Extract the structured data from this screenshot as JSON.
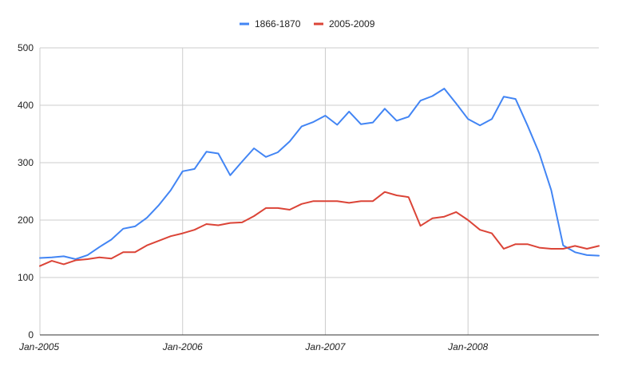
{
  "chart_data": {
    "type": "line",
    "title": "",
    "xlabel": "",
    "ylabel": "",
    "ylim": [
      0,
      500
    ],
    "y_ticks": [
      "0",
      "100",
      "200",
      "300",
      "400",
      "500"
    ],
    "x_ticks": [
      {
        "label": "Jan-2005",
        "index": 0
      },
      {
        "label": "Jan-2006",
        "index": 12
      },
      {
        "label": "Jan-2007",
        "index": 24
      },
      {
        "label": "Jan-2008",
        "index": 36
      }
    ],
    "x": [
      "2005-01",
      "2005-02",
      "2005-03",
      "2005-04",
      "2005-05",
      "2005-06",
      "2005-07",
      "2005-08",
      "2005-09",
      "2005-10",
      "2005-11",
      "2005-12",
      "2006-01",
      "2006-02",
      "2006-03",
      "2006-04",
      "2006-05",
      "2006-06",
      "2006-07",
      "2006-08",
      "2006-09",
      "2006-10",
      "2006-11",
      "2006-12",
      "2007-01",
      "2007-02",
      "2007-03",
      "2007-04",
      "2007-05",
      "2007-06",
      "2007-07",
      "2007-08",
      "2007-09",
      "2007-10",
      "2007-11",
      "2007-12",
      "2008-01",
      "2008-02",
      "2008-03",
      "2008-04",
      "2008-05",
      "2008-06",
      "2008-07",
      "2008-08",
      "2008-09",
      "2008-10",
      "2008-11",
      "2008-12"
    ],
    "grid": true,
    "legend_position": "top",
    "series": [
      {
        "name": "1866-1870",
        "color": "#4285f4",
        "values": [
          134,
          135,
          137,
          132,
          139,
          153,
          166,
          185,
          189,
          204,
          226,
          252,
          285,
          289,
          319,
          316,
          278,
          302,
          325,
          310,
          318,
          337,
          363,
          371,
          382,
          366,
          389,
          367,
          370,
          394,
          373,
          380,
          408,
          416,
          429,
          403,
          376,
          365,
          376,
          415,
          411,
          365,
          316,
          252,
          156,
          144,
          139,
          138
        ]
      },
      {
        "name": "2005-2009",
        "color": "#db4437",
        "values": [
          120,
          129,
          123,
          130,
          132,
          135,
          133,
          144,
          144,
          156,
          164,
          172,
          177,
          183,
          193,
          191,
          195,
          196,
          207,
          221,
          221,
          218,
          228,
          233,
          233,
          233,
          230,
          233,
          233,
          249,
          243,
          240,
          190,
          203,
          206,
          214,
          200,
          183,
          177,
          150,
          158,
          158,
          152,
          150,
          150,
          155,
          150,
          155
        ]
      }
    ]
  }
}
